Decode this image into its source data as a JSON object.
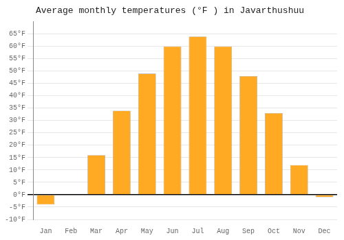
{
  "chart_data": {
    "type": "bar",
    "title": "Average monthly temperatures (°F ) in Javarthushuu",
    "categories": [
      "Jan",
      "Feb",
      "Mar",
      "Apr",
      "May",
      "Jun",
      "Jul",
      "Aug",
      "Sep",
      "Oct",
      "Nov",
      "Dec"
    ],
    "values": [
      -4,
      0,
      16,
      34,
      49,
      60,
      64,
      60,
      48,
      33,
      12,
      -1
    ],
    "color": "#FFAA22",
    "ylim": [
      -10,
      70
    ],
    "yticks": [
      {
        "value": -10,
        "label": "-10°F"
      },
      {
        "value": -5,
        "label": "-5°F"
      },
      {
        "value": 0,
        "label": "0°F"
      },
      {
        "value": 5,
        "label": "5°F"
      },
      {
        "value": 10,
        "label": "10°F"
      },
      {
        "value": 15,
        "label": "15°F"
      },
      {
        "value": 20,
        "label": "20°F"
      },
      {
        "value": 25,
        "label": "25°F"
      },
      {
        "value": 30,
        "label": "30°F"
      },
      {
        "value": 35,
        "label": "35°F"
      },
      {
        "value": 40,
        "label": "40°F"
      },
      {
        "value": 45,
        "label": "45°F"
      },
      {
        "value": 50,
        "label": "50°F"
      },
      {
        "value": 55,
        "label": "55°F"
      },
      {
        "value": 60,
        "label": "60°F"
      },
      {
        "value": 65,
        "label": "65°F"
      }
    ],
    "grid": true
  }
}
